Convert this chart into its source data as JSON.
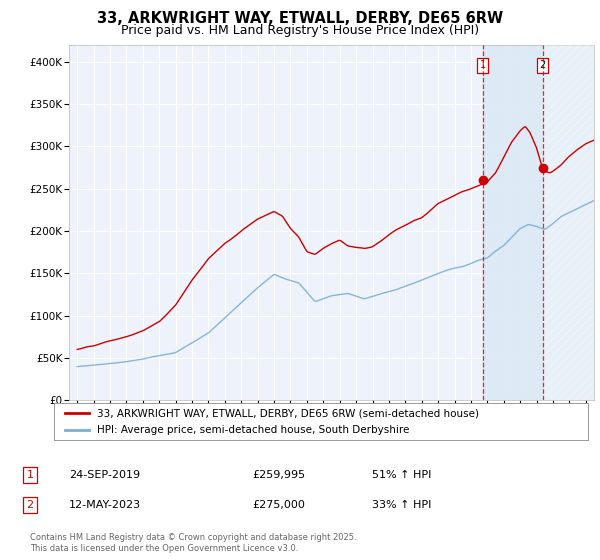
{
  "title": "33, ARKWRIGHT WAY, ETWALL, DERBY, DE65 6RW",
  "subtitle": "Price paid vs. HM Land Registry's House Price Index (HPI)",
  "xlim": [
    1994.5,
    2026.5
  ],
  "ylim": [
    0,
    420000
  ],
  "yticks": [
    0,
    50000,
    100000,
    150000,
    200000,
    250000,
    300000,
    350000,
    400000
  ],
  "ytick_labels": [
    "£0",
    "£50K",
    "£100K",
    "£150K",
    "£200K",
    "£250K",
    "£300K",
    "£350K",
    "£400K"
  ],
  "xticks": [
    1995,
    1996,
    1997,
    1998,
    1999,
    2000,
    2001,
    2002,
    2003,
    2004,
    2005,
    2006,
    2007,
    2008,
    2009,
    2010,
    2011,
    2012,
    2013,
    2014,
    2015,
    2016,
    2017,
    2018,
    2019,
    2020,
    2021,
    2022,
    2023,
    2024,
    2025,
    2026
  ],
  "red_line_color": "#cc0000",
  "blue_line_color": "#7bafd4",
  "shade_color": "#dce8f5",
  "marker1_x": 2019.73,
  "marker1_y": 259995,
  "marker2_x": 2023.37,
  "marker2_y": 275000,
  "vline1_x": 2019.73,
  "vline2_x": 2023.37,
  "legend_red_label": "33, ARKWRIGHT WAY, ETWALL, DERBY, DE65 6RW (semi-detached house)",
  "legend_blue_label": "HPI: Average price, semi-detached house, South Derbyshire",
  "annotation1_num": "1",
  "annotation1_date": "24-SEP-2019",
  "annotation1_price": "£259,995",
  "annotation1_hpi": "51% ↑ HPI",
  "annotation2_num": "2",
  "annotation2_date": "12-MAY-2023",
  "annotation2_price": "£275,000",
  "annotation2_hpi": "33% ↑ HPI",
  "footer": "Contains HM Land Registry data © Crown copyright and database right 2025.\nThis data is licensed under the Open Government Licence v3.0.",
  "bg_color": "#ffffff",
  "plot_bg_color": "#eef2fb",
  "grid_color": "#ffffff",
  "title_fontsize": 10.5,
  "subtitle_fontsize": 9
}
